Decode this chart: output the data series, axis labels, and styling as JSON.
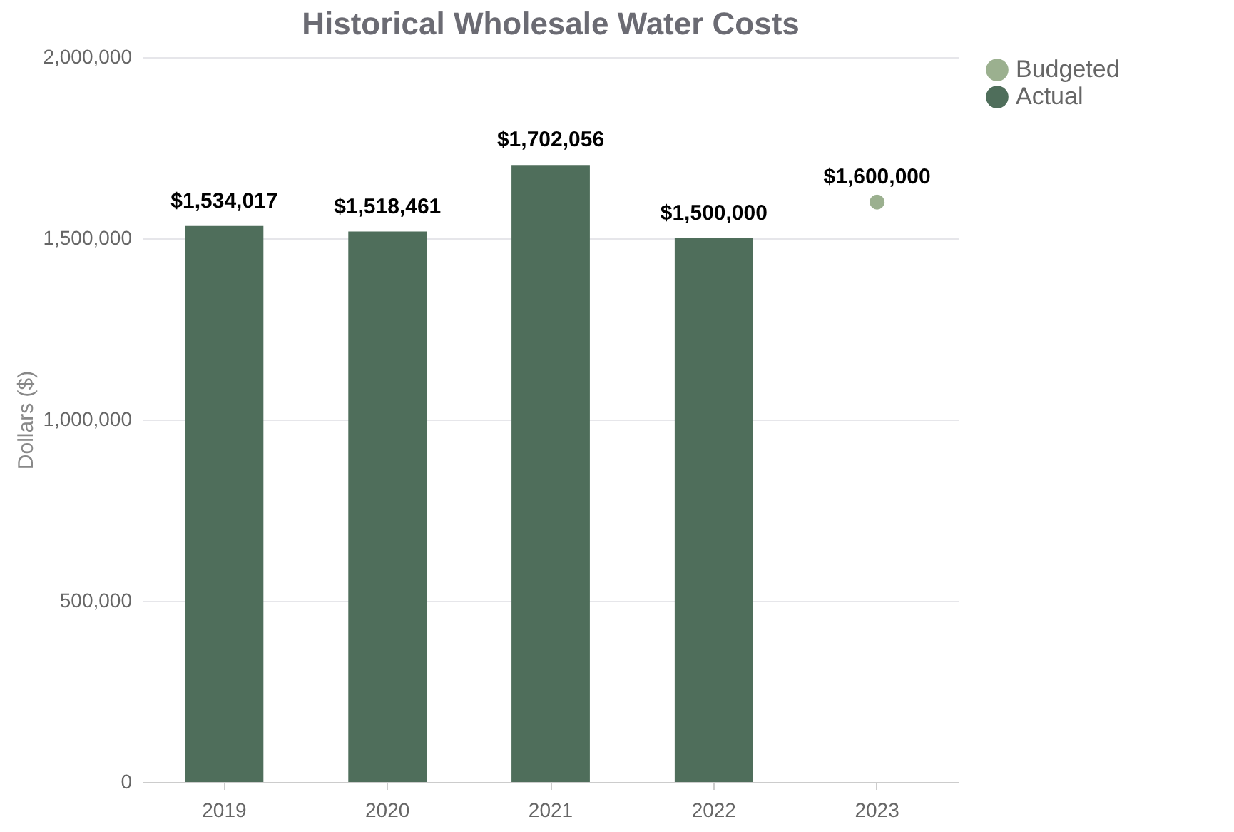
{
  "chart_data": {
    "type": "bar",
    "title": "Historical Wholesale Water Costs",
    "ylabel": "Dollars ($)",
    "categories": [
      "2019",
      "2020",
      "2021",
      "2022",
      "2023"
    ],
    "series": [
      {
        "name": "Budgeted",
        "type": "scatter",
        "marker": "circle",
        "color": "#9bb08f",
        "values": [
          null,
          null,
          null,
          null,
          1600000
        ],
        "value_labels": [
          null,
          null,
          null,
          null,
          "$1,600,000"
        ]
      },
      {
        "name": "Actual",
        "type": "bar",
        "color": "#4f6e5b",
        "values": [
          1534017,
          1518461,
          1702056,
          1500000,
          null
        ],
        "value_labels": [
          "$1,534,017",
          "$1,518,461",
          "$1,702,056",
          "$1,500,000",
          null
        ]
      }
    ],
    "ylim": [
      0,
      2000000
    ],
    "yticks": [
      0,
      {
        "value": 500000,
        "label": "500,000"
      },
      {
        "value": 1000000,
        "label": "1,000,000"
      },
      {
        "value": 1500000,
        "label": "1,500,000"
      },
      {
        "value": 2000000,
        "label": "2,000,000"
      }
    ],
    "grid": "y",
    "legend": "right"
  }
}
